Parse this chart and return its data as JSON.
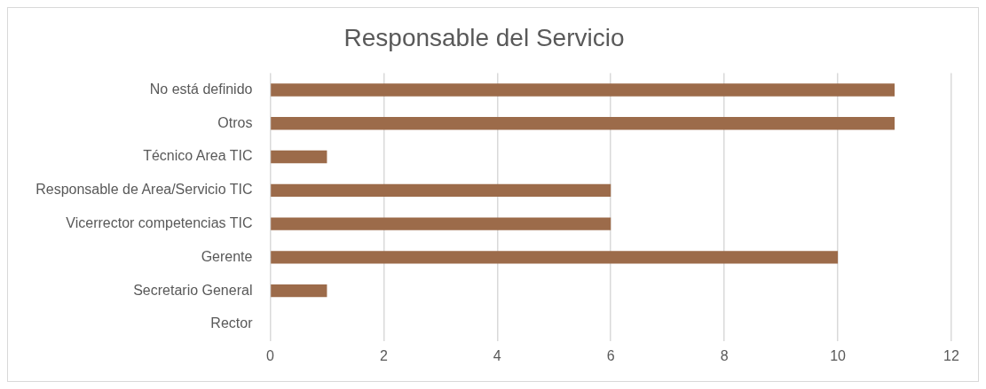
{
  "chart_data": {
    "type": "bar",
    "orientation": "horizontal",
    "title": "Responsable del Servicio",
    "categories": [
      "No está definido",
      "Otros",
      "Técnico Area TIC",
      "Responsable de Area/Servicio TIC",
      "Vicerrector competencias TIC",
      "Gerente",
      "Secretario General",
      "Rector"
    ],
    "values": [
      11,
      11,
      1,
      6,
      6,
      10,
      1,
      0
    ],
    "color": "#9c6b4a",
    "xlim": [
      0,
      12
    ],
    "xticks": [
      0,
      2,
      4,
      6,
      8,
      10,
      12
    ],
    "grid": "x",
    "legend": false
  }
}
